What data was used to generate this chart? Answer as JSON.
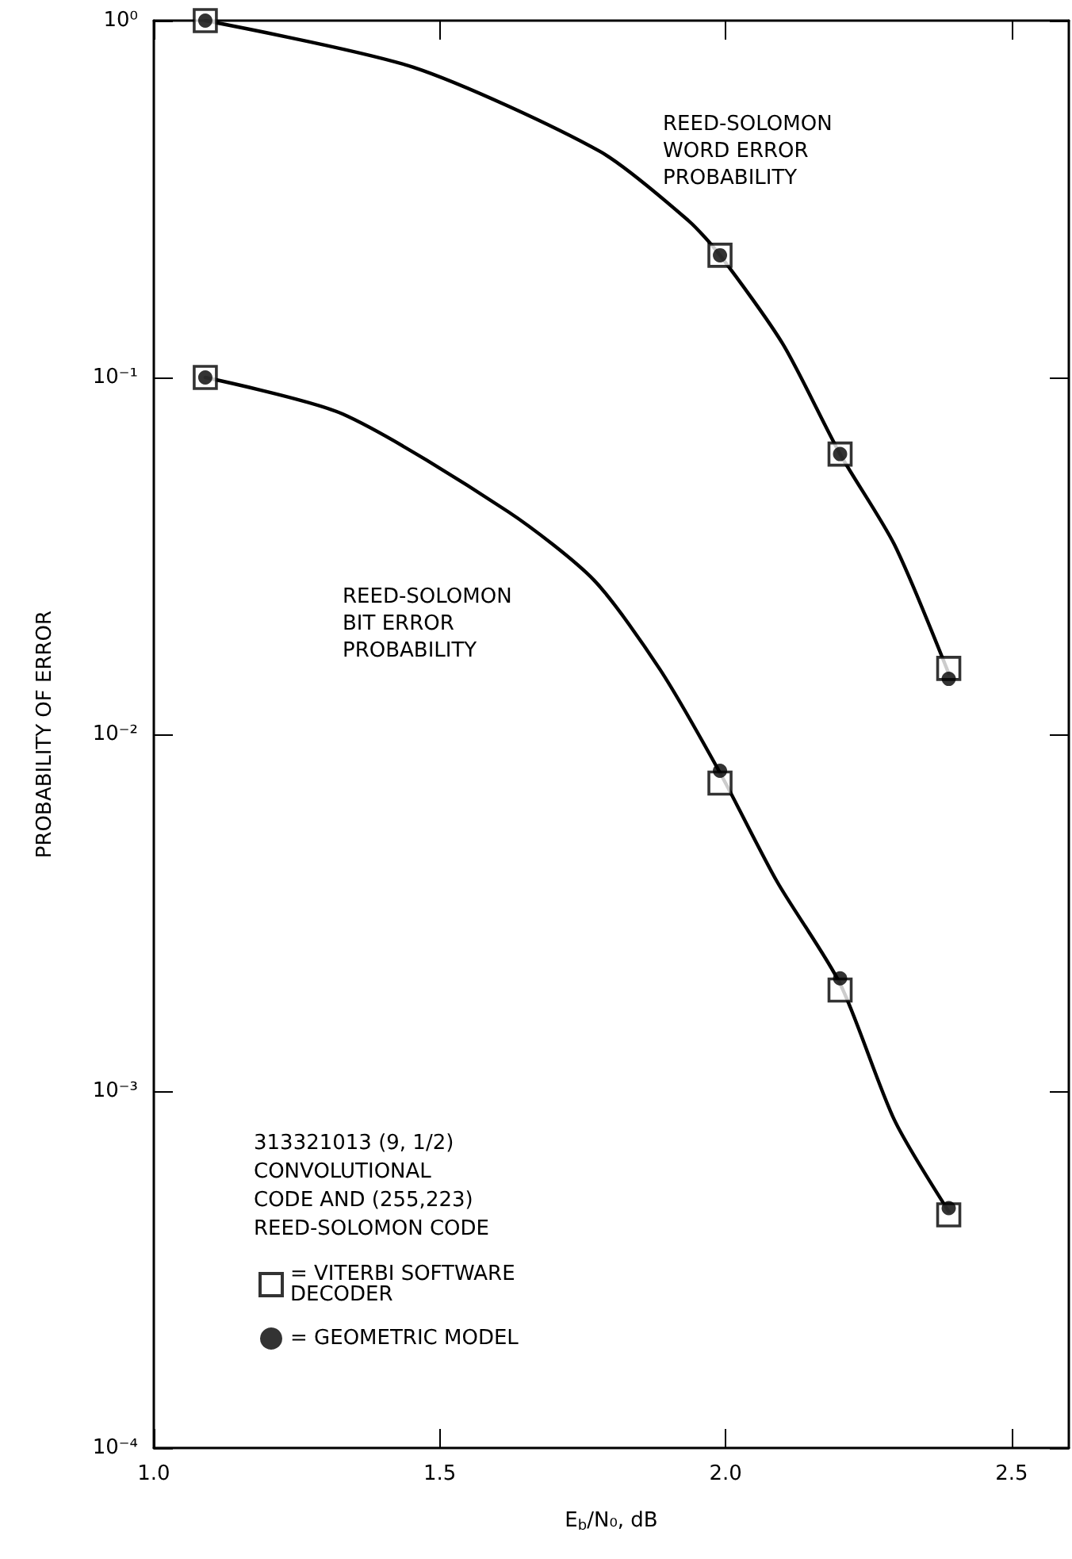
{
  "chart_data": {
    "type": "scatter",
    "xlabel": "E$_{b}$/N₀, dB",
    "ylabel": "PROBABILITY OF ERROR",
    "legend_title": "313321013 (9, 1/2)\nCONVOLUTIONAL\nCODE AND (255,223)\nREED-SOLOMON CODE",
    "legend": "bottom left",
    "log": "y",
    "grid": false,
    "xlim": [
      1.0,
      2.6
    ],
    "xticks": [
      {
        "value": 1,
        "label": "1.0"
      },
      1.5,
      {
        "value": 2,
        "label": "2.0"
      },
      2.5
    ],
    "ylim": [
      0.0001,
      1
    ],
    "yticks": [
      {
        "value": 1,
        "label": "10⁰"
      },
      {
        "value": 0.1,
        "label": "10⁻¹"
      },
      {
        "value": 0.01,
        "label": "10⁻²"
      },
      {
        "value": 0.001,
        "label": "10⁻³"
      },
      {
        "value": 0.0001,
        "label": "10⁻⁴"
      }
    ],
    "series": [
      {
        "type": "line",
        "marker": "none",
        "color": "#000000",
        "x": [
          1.09,
          1.454,
          1.78,
          1.935,
          1.99,
          2.1,
          2.2,
          2.295,
          2.39
        ],
        "values": [
          1.0,
          0.74,
          0.43,
          0.275,
          0.22,
          0.124,
          0.061,
          0.034,
          0.0148
        ]
      },
      {
        "type": "line",
        "marker": "none",
        "color": "#000000",
        "x": [
          1.09,
          1.33,
          1.62,
          1.77,
          1.885,
          1.99,
          2.09,
          2.2,
          2.295,
          2.39
        ],
        "values": [
          0.1,
          0.079,
          0.042,
          0.027,
          0.0152,
          0.0078,
          0.00386,
          0.002,
          0.00083,
          0.00046
        ]
      },
      {
        "marker": "square",
        "name": "= VITERBI SOFTWARE DECODER",
        "color": "#000000",
        "x": [
          1.09,
          1.99,
          2.2,
          2.39,
          1.09,
          1.99,
          2.2,
          2.39
        ],
        "values": [
          1.0,
          0.22,
          0.061,
          0.0153,
          0.1,
          0.0073,
          0.00192,
          0.00045
        ]
      },
      {
        "marker": "circle",
        "name": "= GEOMETRIC MODEL",
        "color": "#000000",
        "x": [
          1.09,
          1.99,
          2.2,
          2.39,
          1.09,
          1.99,
          2.2,
          2.39
        ],
        "values": [
          1.0,
          0.22,
          0.061,
          0.0143,
          0.1,
          0.0079,
          0.00207,
          0.00047
        ]
      }
    ],
    "annotations": [
      "REED-SOLOMON\nWORD ERROR\nPROBABILITY",
      "REED-SOLOMON\nBIT ERROR\nPROBABILITY"
    ]
  }
}
